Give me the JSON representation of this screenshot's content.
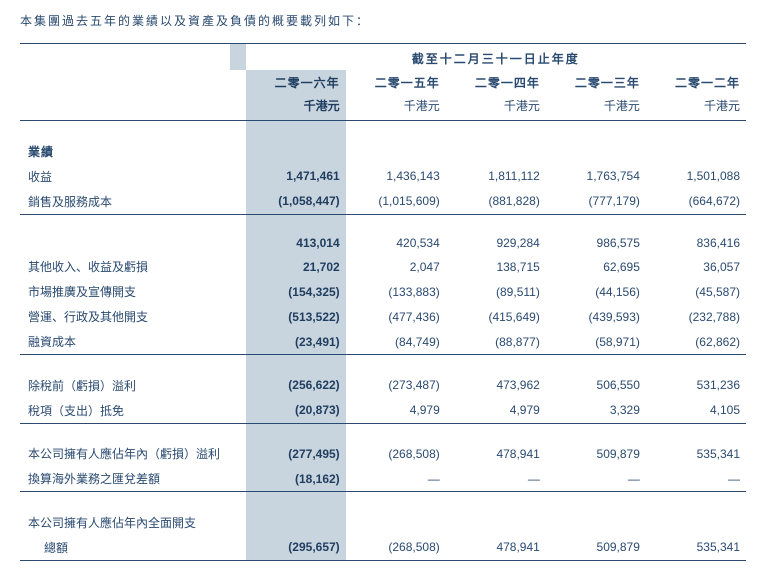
{
  "intro": "本集團過去五年的業績以及資產及負債的概要載列如下：",
  "header_span": "截至十二月三十一日止年度",
  "years": {
    "y2016": "二零一六年",
    "y2015": "二零一五年",
    "y2014": "二零一四年",
    "y2013": "二零一三年",
    "y2012": "二零一二年"
  },
  "unit": "千港元",
  "sections": {
    "results": "業績"
  },
  "rows": {
    "revenue": {
      "label": "收益",
      "v": [
        "1,471,461",
        "1,436,143",
        "1,811,112",
        "1,763,754",
        "1,501,088"
      ]
    },
    "cost": {
      "label": "銷售及服務成本",
      "v": [
        "(1,058,447)",
        "(1,015,609)",
        "(881,828)",
        "(777,179)",
        "(664,672)"
      ]
    },
    "gross": {
      "label": "",
      "v": [
        "413,014",
        "420,534",
        "929,284",
        "986,575",
        "836,416"
      ]
    },
    "other_income": {
      "label": "其他收入、收益及虧損",
      "v": [
        "21,702",
        "2,047",
        "138,715",
        "62,695",
        "36,057"
      ]
    },
    "marketing": {
      "label": "市場推廣及宣傳開支",
      "v": [
        "(154,325)",
        "(133,883)",
        "(89,511)",
        "(44,156)",
        "(45,587)"
      ]
    },
    "admin": {
      "label": "營運、行政及其他開支",
      "v": [
        "(513,522)",
        "(477,436)",
        "(415,649)",
        "(439,593)",
        "(232,788)"
      ]
    },
    "finance": {
      "label": "融資成本",
      "v": [
        "(23,491)",
        "(84,749)",
        "(88,877)",
        "(58,971)",
        "(62,862)"
      ]
    },
    "pbt": {
      "label": "除稅前（虧損）溢利",
      "v": [
        "(256,622)",
        "(273,487)",
        "473,962",
        "506,550",
        "531,236"
      ]
    },
    "tax": {
      "label": "稅項（支出）抵免",
      "v": [
        "(20,873)",
        "4,979",
        "4,979",
        "3,329",
        "4,105"
      ]
    },
    "attributable": {
      "label": "本公司擁有人應佔年內（虧損）溢利",
      "v": [
        "(277,495)",
        "(268,508)",
        "478,941",
        "509,879",
        "535,341"
      ]
    },
    "fx": {
      "label": "換算海外業務之匯兌差額",
      "v": [
        "(18,162)",
        "—",
        "—",
        "—",
        "—"
      ]
    },
    "comprehensive1": {
      "label": "本公司擁有人應佔年內全面開支",
      "v": [
        "",
        "",
        "",
        "",
        ""
      ]
    },
    "comprehensive2": {
      "label": "總額",
      "v": [
        "(295,657)",
        "(268,508)",
        "478,941",
        "509,879",
        "535,341"
      ]
    }
  },
  "colors": {
    "highlight_bg": "#c8d4de",
    "text": "#2a4a70",
    "border": "#2a4a70"
  }
}
